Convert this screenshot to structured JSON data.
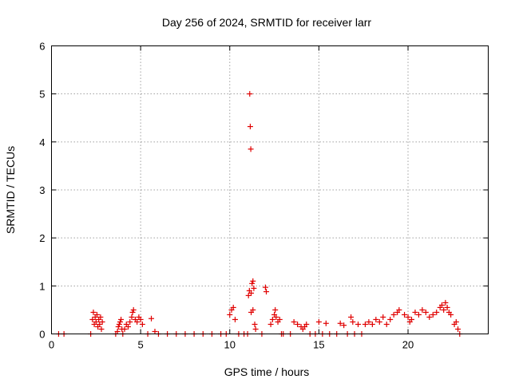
{
  "chart_data": {
    "type": "scatter",
    "title": "Day 256 of 2024, SRMTID for receiver larr",
    "xlabel": "GPS time / hours",
    "ylabel": "SRMTID / TECUs",
    "xlim": [
      0,
      24.5
    ],
    "ylim": [
      0,
      6
    ],
    "xticks": [
      0,
      5,
      10,
      15,
      20
    ],
    "yticks": [
      0,
      1,
      2,
      3,
      4,
      5,
      6
    ],
    "grid": true,
    "marker": "+",
    "color": "#e00000",
    "series": [
      {
        "name": "SRMTID",
        "points": [
          [
            0.4,
            0.0
          ],
          [
            0.7,
            0.0
          ],
          [
            2.2,
            0.0
          ],
          [
            2.3,
            0.3
          ],
          [
            2.35,
            0.45
          ],
          [
            2.4,
            0.2
          ],
          [
            2.45,
            0.35
          ],
          [
            2.5,
            0.25
          ],
          [
            2.55,
            0.4
          ],
          [
            2.6,
            0.15
          ],
          [
            2.65,
            0.3
          ],
          [
            2.7,
            0.2
          ],
          [
            2.75,
            0.35
          ],
          [
            2.8,
            0.1
          ],
          [
            2.85,
            0.25
          ],
          [
            3.6,
            0.0
          ],
          [
            3.7,
            0.05
          ],
          [
            3.75,
            0.15
          ],
          [
            3.8,
            0.2
          ],
          [
            3.85,
            0.25
          ],
          [
            3.9,
            0.3
          ],
          [
            3.95,
            0.1
          ],
          [
            4.0,
            0.0
          ],
          [
            4.1,
            0.1
          ],
          [
            4.2,
            0.2
          ],
          [
            4.3,
            0.15
          ],
          [
            4.4,
            0.25
          ],
          [
            4.5,
            0.35
          ],
          [
            4.55,
            0.45
          ],
          [
            4.6,
            0.5
          ],
          [
            4.7,
            0.3
          ],
          [
            4.8,
            0.25
          ],
          [
            4.9,
            0.35
          ],
          [
            5.0,
            0.3
          ],
          [
            5.1,
            0.2
          ],
          [
            5.4,
            0.0
          ],
          [
            5.6,
            0.32
          ],
          [
            5.8,
            0.05
          ],
          [
            6.0,
            0.0
          ],
          [
            6.5,
            0.0
          ],
          [
            7.0,
            0.0
          ],
          [
            7.5,
            0.0
          ],
          [
            8.0,
            0.0
          ],
          [
            8.5,
            0.0
          ],
          [
            9.0,
            0.0
          ],
          [
            9.5,
            0.0
          ],
          [
            9.8,
            0.0
          ],
          [
            10.0,
            0.4
          ],
          [
            10.1,
            0.5
          ],
          [
            10.2,
            0.55
          ],
          [
            10.3,
            0.3
          ],
          [
            10.5,
            0.0
          ],
          [
            10.8,
            0.0
          ],
          [
            11.0,
            0.0
          ],
          [
            11.05,
            0.8
          ],
          [
            11.1,
            0.9
          ],
          [
            11.12,
            5.0
          ],
          [
            11.15,
            4.32
          ],
          [
            11.18,
            3.85
          ],
          [
            11.2,
            0.85
          ],
          [
            11.25,
            1.05
          ],
          [
            11.3,
            1.1
          ],
          [
            11.35,
            0.95
          ],
          [
            11.2,
            0.45
          ],
          [
            11.3,
            0.5
          ],
          [
            11.4,
            0.2
          ],
          [
            11.45,
            0.1
          ],
          [
            11.8,
            0.0
          ],
          [
            12.0,
            0.97
          ],
          [
            12.05,
            0.88
          ],
          [
            12.3,
            0.2
          ],
          [
            12.4,
            0.3
          ],
          [
            12.5,
            0.4
          ],
          [
            12.55,
            0.5
          ],
          [
            12.6,
            0.35
          ],
          [
            12.7,
            0.25
          ],
          [
            12.8,
            0.3
          ],
          [
            12.9,
            0.0
          ],
          [
            13.0,
            0.0
          ],
          [
            13.4,
            0.0
          ],
          [
            13.6,
            0.25
          ],
          [
            13.8,
            0.2
          ],
          [
            14.0,
            0.15
          ],
          [
            14.1,
            0.1
          ],
          [
            14.2,
            0.15
          ],
          [
            14.3,
            0.2
          ],
          [
            14.5,
            0.0
          ],
          [
            14.8,
            0.0
          ],
          [
            15.0,
            0.25
          ],
          [
            15.2,
            0.0
          ],
          [
            15.4,
            0.22
          ],
          [
            15.6,
            0.0
          ],
          [
            16.0,
            0.0
          ],
          [
            16.2,
            0.22
          ],
          [
            16.4,
            0.18
          ],
          [
            16.6,
            0.0
          ],
          [
            16.8,
            0.35
          ],
          [
            16.9,
            0.25
          ],
          [
            17.0,
            0.0
          ],
          [
            17.2,
            0.2
          ],
          [
            17.4,
            0.0
          ],
          [
            17.6,
            0.2
          ],
          [
            17.8,
            0.25
          ],
          [
            18.0,
            0.2
          ],
          [
            18.2,
            0.3
          ],
          [
            18.4,
            0.25
          ],
          [
            18.6,
            0.35
          ],
          [
            18.8,
            0.2
          ],
          [
            19.0,
            0.3
          ],
          [
            19.2,
            0.4
          ],
          [
            19.4,
            0.45
          ],
          [
            19.5,
            0.5
          ],
          [
            19.8,
            0.4
          ],
          [
            20.0,
            0.35
          ],
          [
            20.1,
            0.25
          ],
          [
            20.2,
            0.3
          ],
          [
            20.4,
            0.45
          ],
          [
            20.6,
            0.4
          ],
          [
            20.8,
            0.5
          ],
          [
            21.0,
            0.45
          ],
          [
            21.2,
            0.35
          ],
          [
            21.4,
            0.4
          ],
          [
            21.6,
            0.45
          ],
          [
            21.8,
            0.55
          ],
          [
            21.9,
            0.6
          ],
          [
            22.0,
            0.5
          ],
          [
            22.1,
            0.65
          ],
          [
            22.2,
            0.55
          ],
          [
            22.3,
            0.45
          ],
          [
            22.4,
            0.4
          ],
          [
            22.6,
            0.2
          ],
          [
            22.7,
            0.25
          ],
          [
            22.8,
            0.1
          ],
          [
            22.9,
            0.0
          ]
        ]
      }
    ]
  }
}
